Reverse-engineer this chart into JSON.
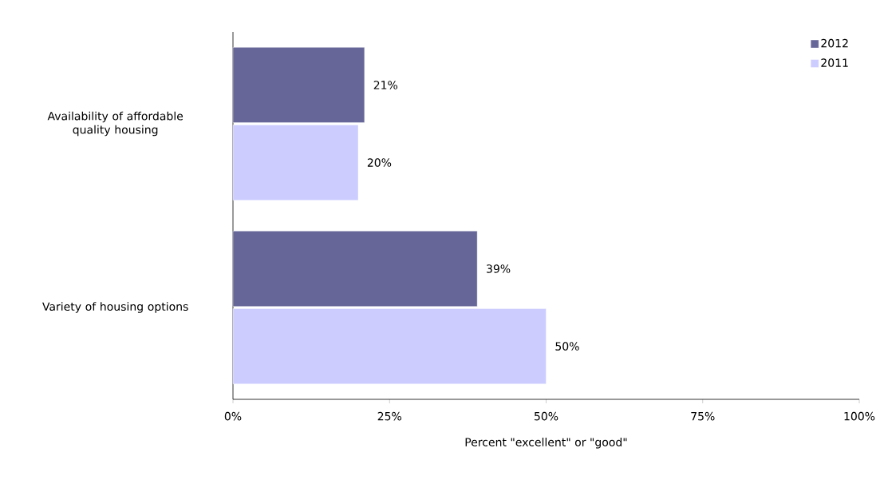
{
  "chart_data": {
    "type": "bar",
    "orientation": "horizontal",
    "categories": [
      "Availability of affordable quality housing",
      "Variety of housing options"
    ],
    "series": [
      {
        "name": "2012",
        "color": "#666699",
        "values": [
          21,
          39
        ],
        "value_labels": [
          "21%",
          "39%"
        ]
      },
      {
        "name": "2011",
        "color": "#ccccff",
        "values": [
          20,
          50
        ],
        "value_labels": [
          "20%",
          "50%"
        ]
      }
    ],
    "xlabel": "Percent \"excellent\" or \"good\"",
    "xlim": [
      0,
      100
    ],
    "xticks": [
      {
        "value": 0,
        "label": "0%"
      },
      {
        "value": 25,
        "label": "25%"
      },
      {
        "value": 50,
        "label": "50%"
      },
      {
        "value": 75,
        "label": "75%"
      },
      {
        "value": 100,
        "label": "100%"
      }
    ],
    "legend": "top right",
    "grid": false
  }
}
